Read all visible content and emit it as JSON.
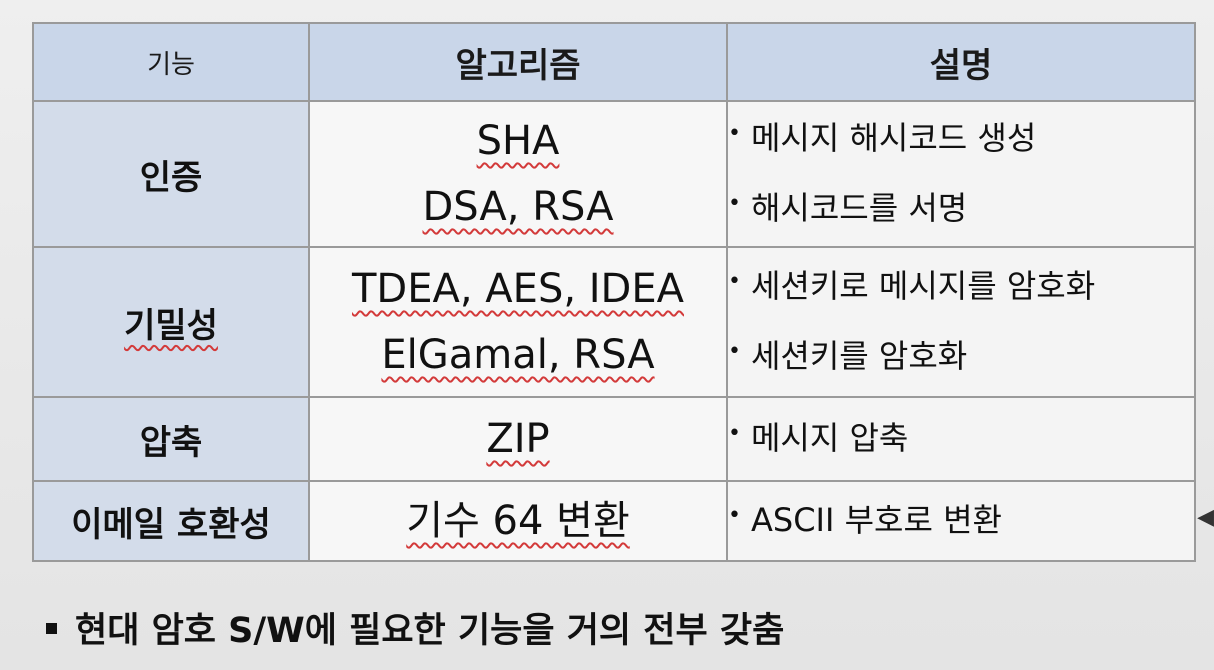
{
  "table": {
    "headers": [
      "기능",
      "알고리즘",
      "설명"
    ],
    "rows": [
      {
        "function": "인증",
        "algorithms": [
          "SHA",
          "DSA, RSA"
        ],
        "descriptions": [
          "메시지 해시코드 생성",
          "해시코드를 서명"
        ]
      },
      {
        "function": "기밀성",
        "algorithms": [
          "TDEA, AES, IDEA",
          "ElGamal, RSA"
        ],
        "descriptions": [
          "세션키로 메시지를 암호화",
          "세션키를 암호화"
        ]
      },
      {
        "function": "압축",
        "algorithms": [
          "ZIP"
        ],
        "descriptions": [
          "메시지 압축"
        ]
      },
      {
        "function": "이메일 호환성",
        "algorithms": [
          "기수 64 변환"
        ],
        "descriptions": [
          "ASCII 부호로 변환"
        ]
      }
    ]
  },
  "footer": {
    "text": "현대 암호 S/W에 필요한 기능을 거의 전부 갖춤"
  },
  "colors": {
    "header_bg": "#c9d6e9",
    "function_cell_bg": "#d3dcea",
    "cell_bg": "#f7f7f7",
    "border": "#9a9a9a",
    "annotation_red": "#d33a3a"
  }
}
